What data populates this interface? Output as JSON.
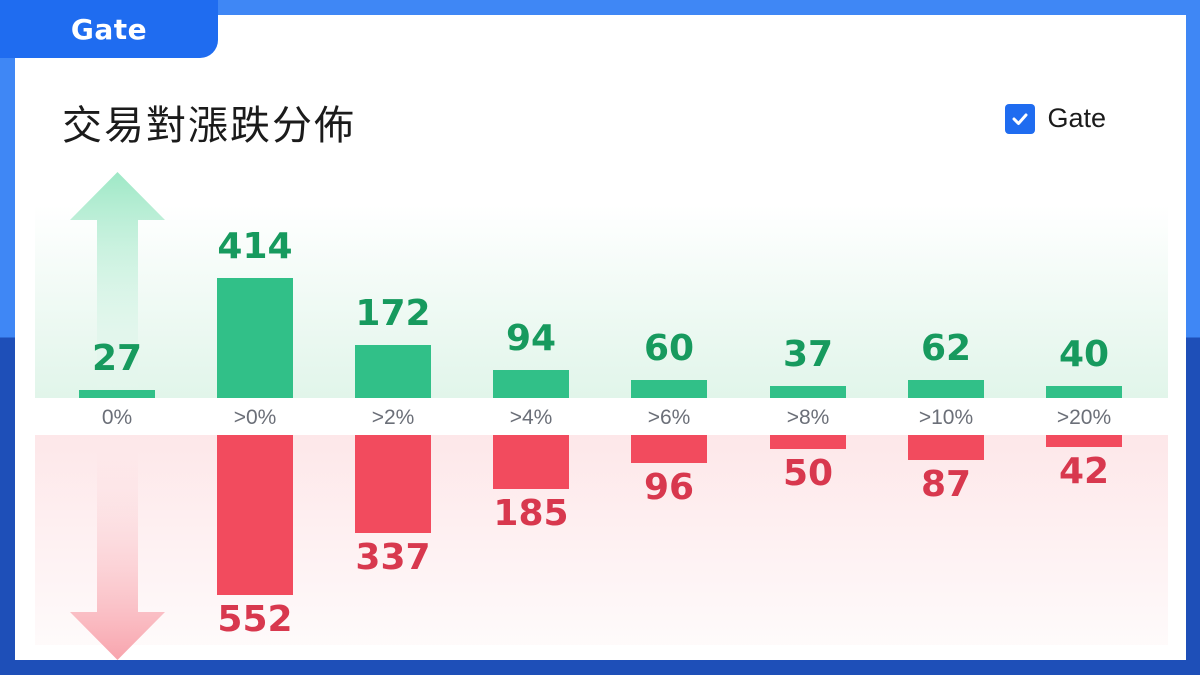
{
  "brand": {
    "logo_text": "Gate"
  },
  "title": "交易對漲跌分佈",
  "legend": {
    "label": "Gate",
    "checked": true
  },
  "colors": {
    "up": "#31c088",
    "down": "#f24b5e",
    "up_text": "#179a5e",
    "down_text": "#d8384e",
    "accent": "#1f6cf0"
  },
  "chart_data": {
    "type": "bar",
    "categories": [
      "0%",
      ">0%",
      ">2%",
      ">4%",
      ">6%",
      ">8%",
      ">10%",
      ">20%"
    ],
    "series": [
      {
        "name": "",
        "values": [
          27,
          414,
          172,
          94,
          60,
          37,
          62,
          40
        ]
      },
      {
        "name": "",
        "values": [
          null,
          552,
          337,
          185,
          96,
          50,
          87,
          42
        ]
      }
    ],
    "title": "交易對漲跌分佈",
    "xlabel": "",
    "ylabel": "",
    "legend": [
      "Gate"
    ],
    "legend_position": "top-right",
    "grid": false
  }
}
